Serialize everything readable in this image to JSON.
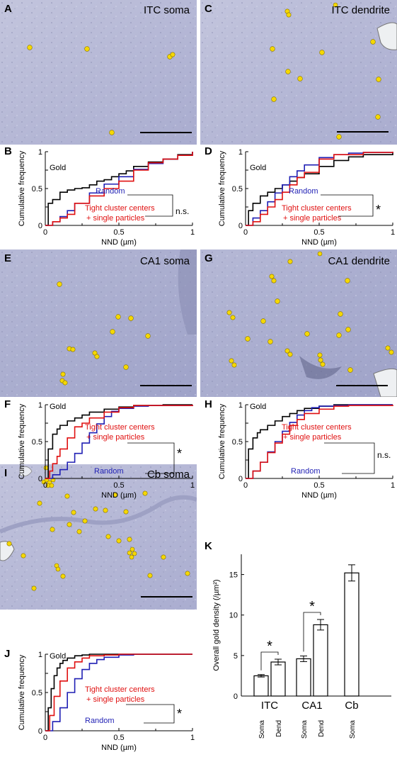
{
  "panels": {
    "A": {
      "letter": "A",
      "title": "ITC soma"
    },
    "C": {
      "letter": "C",
      "title": "ITC dendrite"
    },
    "E": {
      "letter": "E",
      "title": "CA1 soma"
    },
    "G": {
      "letter": "G",
      "title": "CA1 dendrite"
    },
    "I": {
      "letter": "I",
      "title": "Cb soma"
    },
    "B": {
      "letter": "B"
    },
    "D": {
      "letter": "D"
    },
    "F": {
      "letter": "F"
    },
    "H": {
      "letter": "H"
    },
    "J": {
      "letter": "J"
    },
    "K": {
      "letter": "K"
    }
  },
  "colors": {
    "gold": "#000000",
    "random": "#1f1fb4",
    "tight": "#e01010",
    "micrograph": "#b8bbd8",
    "particle": "#f5d800"
  },
  "cdf_common": {
    "xlabel": "NND (µm)",
    "ylabel": "Cumulative frequency",
    "xticks": [
      "0",
      "0.5",
      "1"
    ],
    "yticks": [
      "0",
      "0.25",
      "0.5",
      "0.75",
      "1"
    ],
    "xlim": [
      0,
      1
    ],
    "ylim": [
      0,
      1
    ],
    "label_gold": "Gold",
    "label_random": "Random",
    "label_tight_1": "Tight cluster centers",
    "label_tight_2": "+ single particles"
  },
  "chart_data": [
    {
      "type": "line",
      "panel": "B",
      "significance": "n.s.",
      "series": [
        {
          "name": "Gold",
          "x": [
            0,
            0.02,
            0.05,
            0.1,
            0.15,
            0.2,
            0.25,
            0.3,
            0.35,
            0.4,
            0.45,
            0.5,
            0.55,
            0.6,
            0.7,
            0.8,
            0.9,
            1.0
          ],
          "y": [
            0,
            0.3,
            0.35,
            0.45,
            0.48,
            0.5,
            0.51,
            0.55,
            0.6,
            0.62,
            0.66,
            0.7,
            0.74,
            0.8,
            0.86,
            0.9,
            0.96,
            1.0
          ]
        },
        {
          "name": "Random",
          "x": [
            0,
            0.05,
            0.1,
            0.15,
            0.2,
            0.3,
            0.4,
            0.5,
            0.6,
            0.7,
            0.8,
            0.9,
            1.0
          ],
          "y": [
            0,
            0.05,
            0.12,
            0.2,
            0.3,
            0.44,
            0.56,
            0.66,
            0.76,
            0.84,
            0.9,
            0.95,
            1.0
          ]
        },
        {
          "name": "Tight cluster centers + single particles",
          "x": [
            0,
            0.05,
            0.1,
            0.15,
            0.2,
            0.3,
            0.4,
            0.5,
            0.6,
            0.7,
            0.8,
            0.9,
            1.0
          ],
          "y": [
            0,
            0.05,
            0.1,
            0.15,
            0.3,
            0.4,
            0.5,
            0.6,
            0.75,
            0.85,
            0.9,
            0.95,
            1.0
          ]
        }
      ]
    },
    {
      "type": "line",
      "panel": "D",
      "significance": "*",
      "series": [
        {
          "name": "Gold",
          "x": [
            0,
            0.02,
            0.05,
            0.1,
            0.15,
            0.2,
            0.25,
            0.3,
            0.35,
            0.4,
            0.5,
            0.6,
            0.7,
            0.8,
            1.0
          ],
          "y": [
            0,
            0.2,
            0.3,
            0.4,
            0.45,
            0.5,
            0.55,
            0.6,
            0.65,
            0.7,
            0.8,
            0.88,
            0.93,
            0.96,
            1.0
          ]
        },
        {
          "name": "Random",
          "x": [
            0,
            0.05,
            0.1,
            0.15,
            0.2,
            0.25,
            0.3,
            0.35,
            0.4,
            0.5,
            0.6,
            0.7,
            0.8,
            1.0
          ],
          "y": [
            0,
            0.1,
            0.2,
            0.32,
            0.44,
            0.55,
            0.66,
            0.74,
            0.82,
            0.92,
            0.96,
            0.98,
            0.99,
            1.0
          ]
        },
        {
          "name": "Tight cluster centers + single particles",
          "x": [
            0,
            0.05,
            0.1,
            0.15,
            0.2,
            0.25,
            0.3,
            0.35,
            0.4,
            0.5,
            0.6,
            0.8,
            1.0
          ],
          "y": [
            0,
            0.05,
            0.15,
            0.25,
            0.35,
            0.45,
            0.55,
            0.65,
            0.72,
            0.9,
            0.96,
            0.99,
            1.0
          ]
        }
      ]
    },
    {
      "type": "line",
      "panel": "F",
      "significance": "*",
      "series": [
        {
          "name": "Gold",
          "x": [
            0,
            0.02,
            0.05,
            0.08,
            0.1,
            0.15,
            0.2,
            0.25,
            0.3,
            0.4,
            0.5,
            0.6,
            0.8,
            1.0
          ],
          "y": [
            0,
            0.4,
            0.6,
            0.67,
            0.72,
            0.78,
            0.82,
            0.86,
            0.9,
            0.94,
            0.97,
            0.99,
            1.0,
            1.0
          ]
        },
        {
          "name": "Random",
          "x": [
            0,
            0.05,
            0.1,
            0.15,
            0.2,
            0.25,
            0.3,
            0.35,
            0.4,
            0.45,
            0.5,
            0.6,
            0.7,
            1.0
          ],
          "y": [
            0,
            0.05,
            0.12,
            0.22,
            0.34,
            0.48,
            0.62,
            0.74,
            0.84,
            0.91,
            0.95,
            0.98,
            0.99,
            1.0
          ]
        },
        {
          "name": "Tight cluster centers + single particles",
          "x": [
            0,
            0.03,
            0.05,
            0.08,
            0.1,
            0.15,
            0.2,
            0.25,
            0.3,
            0.4,
            0.5,
            0.6,
            1.0
          ],
          "y": [
            0,
            0.1,
            0.2,
            0.3,
            0.4,
            0.55,
            0.7,
            0.75,
            0.82,
            0.9,
            0.96,
            0.99,
            1.0
          ]
        }
      ]
    },
    {
      "type": "line",
      "panel": "H",
      "significance": "n.s.",
      "series": [
        {
          "name": "Gold",
          "x": [
            0,
            0.02,
            0.05,
            0.08,
            0.1,
            0.15,
            0.2,
            0.25,
            0.3,
            0.35,
            0.4,
            0.5,
            0.6,
            1.0
          ],
          "y": [
            0,
            0.4,
            0.55,
            0.62,
            0.66,
            0.72,
            0.78,
            0.84,
            0.88,
            0.92,
            0.95,
            0.98,
            1.0,
            1.0
          ]
        },
        {
          "name": "Random",
          "x": [
            0,
            0.05,
            0.1,
            0.15,
            0.2,
            0.25,
            0.3,
            0.35,
            0.4,
            0.45,
            0.5,
            0.6,
            0.7,
            1.0
          ],
          "y": [
            0,
            0.1,
            0.22,
            0.36,
            0.5,
            0.64,
            0.76,
            0.86,
            0.92,
            0.96,
            0.98,
            0.99,
            1.0,
            1.0
          ]
        },
        {
          "name": "Tight cluster centers + single particles",
          "x": [
            0,
            0.05,
            0.1,
            0.15,
            0.2,
            0.25,
            0.3,
            0.35,
            0.4,
            0.5,
            0.6,
            0.7,
            1.0
          ],
          "y": [
            0,
            0.1,
            0.22,
            0.35,
            0.48,
            0.6,
            0.72,
            0.8,
            0.88,
            0.94,
            0.98,
            0.99,
            1.0
          ]
        }
      ]
    },
    {
      "type": "line",
      "panel": "J",
      "significance": "*",
      "series": [
        {
          "name": "Gold",
          "x": [
            0,
            0.02,
            0.04,
            0.06,
            0.08,
            0.1,
            0.12,
            0.15,
            0.2,
            0.25,
            0.3,
            0.4,
            1.0
          ],
          "y": [
            0,
            0.3,
            0.55,
            0.72,
            0.82,
            0.88,
            0.92,
            0.95,
            0.98,
            0.99,
            1.0,
            1.0,
            1.0
          ]
        },
        {
          "name": "Random",
          "x": [
            0,
            0.05,
            0.1,
            0.15,
            0.2,
            0.25,
            0.3,
            0.35,
            0.4,
            0.5,
            0.6,
            1.0
          ],
          "y": [
            0,
            0.12,
            0.3,
            0.5,
            0.68,
            0.8,
            0.88,
            0.93,
            0.96,
            0.99,
            1.0,
            1.0
          ]
        },
        {
          "name": "Tight cluster centers + single particles",
          "x": [
            0,
            0.03,
            0.06,
            0.1,
            0.15,
            0.2,
            0.25,
            0.3,
            0.4,
            0.5,
            1.0
          ],
          "y": [
            0,
            0.2,
            0.45,
            0.65,
            0.82,
            0.9,
            0.95,
            0.98,
            0.99,
            1.0,
            1.0
          ]
        }
      ]
    },
    {
      "type": "bar",
      "panel": "K",
      "ylabel": "Overall gold density (/µm²)",
      "ylim": [
        0,
        17.5
      ],
      "yticks": [
        "0",
        "5",
        "10",
        "15"
      ],
      "groups": [
        "ITC",
        "CA1",
        "Cb"
      ],
      "categories": [
        "Soma",
        "Dend",
        "Soma",
        "Dend",
        "Soma"
      ],
      "category_groups": [
        0,
        0,
        1,
        1,
        2
      ],
      "values": [
        2.5,
        4.2,
        4.6,
        8.8,
        15.2
      ],
      "errors": [
        0.15,
        0.35,
        0.35,
        0.65,
        1.0
      ],
      "significance": [
        {
          "pair": [
            0,
            1
          ],
          "label": "*"
        },
        {
          "pair": [
            2,
            3
          ],
          "label": "*"
        }
      ]
    }
  ]
}
